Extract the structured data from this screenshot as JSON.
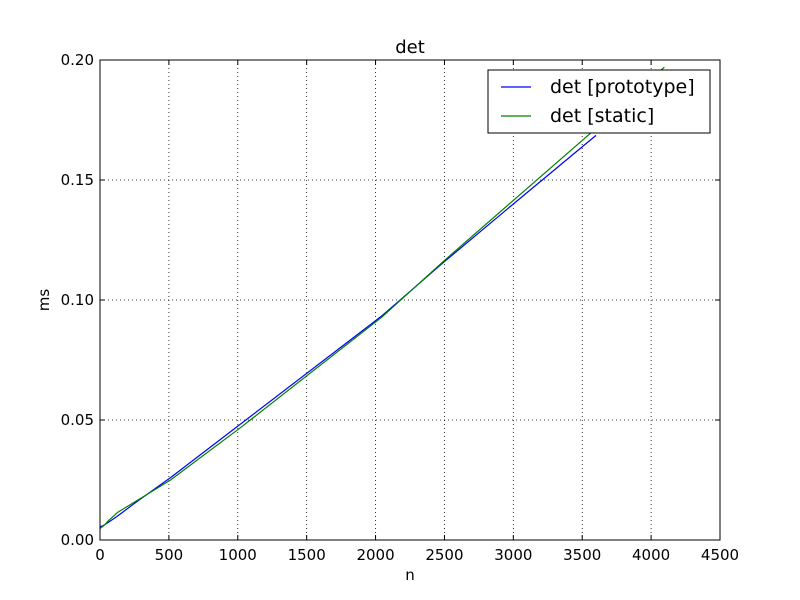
{
  "chart_data": {
    "type": "line",
    "title": "det",
    "xlabel": "n",
    "ylabel": "ms",
    "xlim": [
      0,
      4500
    ],
    "ylim": [
      0,
      0.2
    ],
    "x_ticks": [
      0,
      500,
      1000,
      1500,
      2000,
      2500,
      3000,
      3500,
      4000,
      4500
    ],
    "x_tick_labels": [
      "0",
      "500",
      "1000",
      "1500",
      "2000",
      "2500",
      "3000",
      "3500",
      "4000",
      "4500"
    ],
    "y_ticks": [
      0,
      0.05,
      0.1,
      0.15,
      0.2
    ],
    "y_tick_labels": [
      "0.00",
      "0.05",
      "0.10",
      "0.15",
      "0.20"
    ],
    "grid": true,
    "legend_position": "top-right",
    "series": [
      {
        "name": "det [prototype]",
        "color": "#0000ff",
        "x": [
          0,
          16,
          32,
          64,
          128,
          256,
          512,
          1024,
          2048,
          2500,
          3000,
          3600
        ],
        "y": [
          0.0055,
          0.0058,
          0.0063,
          0.0075,
          0.01,
          0.0155,
          0.026,
          0.0485,
          0.0935,
          0.116,
          0.14,
          0.1686
        ]
      },
      {
        "name": "det [static]",
        "color": "#008000",
        "x": [
          0,
          16,
          32,
          64,
          128,
          256,
          512,
          1024,
          2048,
          2500,
          3000,
          3600,
          4096
        ],
        "y": [
          0.0048,
          0.0055,
          0.0062,
          0.0082,
          0.0115,
          0.016,
          0.025,
          0.047,
          0.093,
          0.1165,
          0.1415,
          0.1715,
          0.197
        ]
      }
    ]
  }
}
